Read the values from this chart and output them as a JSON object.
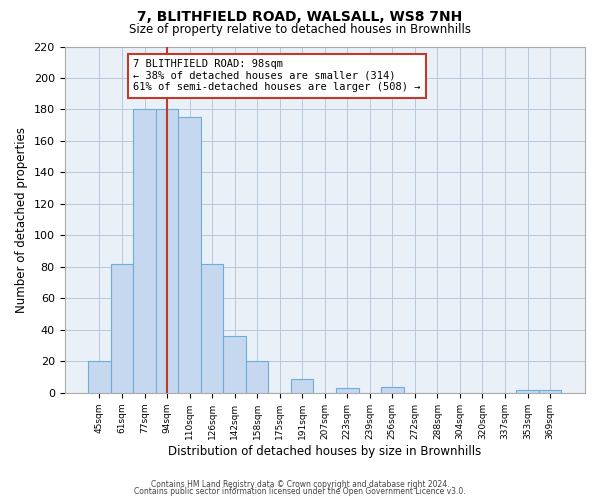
{
  "title": "7, BLITHFIELD ROAD, WALSALL, WS8 7NH",
  "subtitle": "Size of property relative to detached houses in Brownhills",
  "xlabel": "Distribution of detached houses by size in Brownhills",
  "ylabel": "Number of detached properties",
  "bar_labels": [
    "45sqm",
    "61sqm",
    "77sqm",
    "94sqm",
    "110sqm",
    "126sqm",
    "142sqm",
    "158sqm",
    "175sqm",
    "191sqm",
    "207sqm",
    "223sqm",
    "239sqm",
    "256sqm",
    "272sqm",
    "288sqm",
    "304sqm",
    "320sqm",
    "337sqm",
    "353sqm",
    "369sqm"
  ],
  "bar_values": [
    20,
    82,
    180,
    180,
    175,
    82,
    36,
    20,
    0,
    9,
    0,
    3,
    0,
    4,
    0,
    0,
    0,
    0,
    0,
    2,
    2
  ],
  "bar_color": "#c5d8ef",
  "bar_edge_color": "#6baed6",
  "vline_x_idx": 3,
  "vline_color": "#c0392b",
  "annotation_title": "7 BLITHFIELD ROAD: 98sqm",
  "annotation_line1": "← 38% of detached houses are smaller (314)",
  "annotation_line2": "61% of semi-detached houses are larger (508) →",
  "annotation_box_edge": "#c0392b",
  "ylim": [
    0,
    220
  ],
  "yticks": [
    0,
    20,
    40,
    60,
    80,
    100,
    120,
    140,
    160,
    180,
    200,
    220
  ],
  "footer_line1": "Contains HM Land Registry data © Crown copyright and database right 2024.",
  "footer_line2": "Contains public sector information licensed under the Open Government Licence v3.0.",
  "bg_color": "#eaf0f8"
}
